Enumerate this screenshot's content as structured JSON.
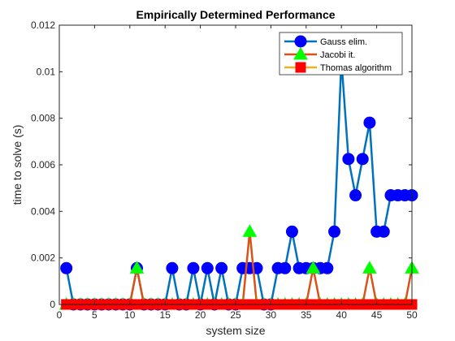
{
  "chart_data": {
    "type": "line",
    "title": "Empirically Determined Performance",
    "xlabel": "system size",
    "ylabel": "time to solve (s)",
    "xlim": [
      0,
      50
    ],
    "ylim": [
      0,
      0.012
    ],
    "xticks": [
      0,
      5,
      10,
      15,
      20,
      25,
      30,
      35,
      40,
      45,
      50
    ],
    "yticks": [
      0,
      0.002,
      0.004,
      0.006,
      0.008,
      0.01,
      0.012
    ],
    "ytick_labels": [
      "0",
      "0.002",
      "0.004",
      "0.006",
      "0.008",
      "0.01",
      "0.012"
    ],
    "grid": false,
    "legend_position": "top-right",
    "x": [
      1,
      2,
      3,
      4,
      5,
      6,
      7,
      8,
      9,
      10,
      11,
      12,
      13,
      14,
      15,
      16,
      17,
      18,
      19,
      20,
      21,
      22,
      23,
      24,
      25,
      26,
      27,
      28,
      29,
      30,
      31,
      32,
      33,
      34,
      35,
      36,
      37,
      38,
      39,
      40,
      41,
      42,
      43,
      44,
      45,
      46,
      47,
      48,
      49,
      50
    ],
    "series": [
      {
        "name": "Gauss elim.",
        "color": "#0072BD",
        "marker_color": "#0000FF",
        "marker": "circle",
        "values": [
          0.00156,
          0,
          0,
          0,
          0,
          0,
          0,
          0,
          0,
          0,
          0.00156,
          0,
          0,
          0,
          0,
          0.00156,
          0,
          0,
          0.00156,
          0,
          0.00156,
          0,
          0.00156,
          0,
          0,
          0.00156,
          0.00156,
          0.00156,
          0,
          0,
          0.00156,
          0.00156,
          0.00313,
          0.00156,
          0.00156,
          0.00156,
          0.00156,
          0.00156,
          0.00313,
          0.0105,
          0.00625,
          0.00469,
          0.00625,
          0.00781,
          0.00313,
          0.00313,
          0.00469,
          0.00469,
          0.00469,
          0.00469
        ]
      },
      {
        "name": "Jacobi it.",
        "color": "#D95319",
        "marker_color": "#00FF00",
        "marker": "triangle",
        "values": [
          0,
          0,
          0,
          0,
          0,
          0,
          0,
          0,
          0,
          0,
          0.00156,
          0,
          0,
          0,
          0,
          0,
          0,
          0,
          0,
          0,
          0,
          0,
          0,
          0,
          0,
          0,
          0.00313,
          0,
          0,
          0,
          0,
          0,
          0,
          0,
          0,
          0.00156,
          0,
          0,
          0,
          0,
          0,
          0,
          0,
          0.00156,
          0,
          0,
          0,
          0,
          0,
          0.00156
        ]
      },
      {
        "name": "Thomas algorithm",
        "color": "#EDB120",
        "marker_color": "#FF0000",
        "marker": "square",
        "values": [
          0,
          0,
          0,
          0,
          0,
          0,
          0,
          0,
          0,
          0,
          0,
          0,
          0,
          0,
          0,
          0,
          0,
          0,
          0,
          0,
          0,
          0,
          0,
          0,
          0,
          0,
          0,
          0,
          0,
          0,
          0,
          0,
          0,
          0,
          0,
          0,
          0,
          0,
          0,
          0,
          0,
          0,
          0,
          0,
          0,
          0,
          0,
          0,
          0,
          0
        ]
      }
    ]
  }
}
